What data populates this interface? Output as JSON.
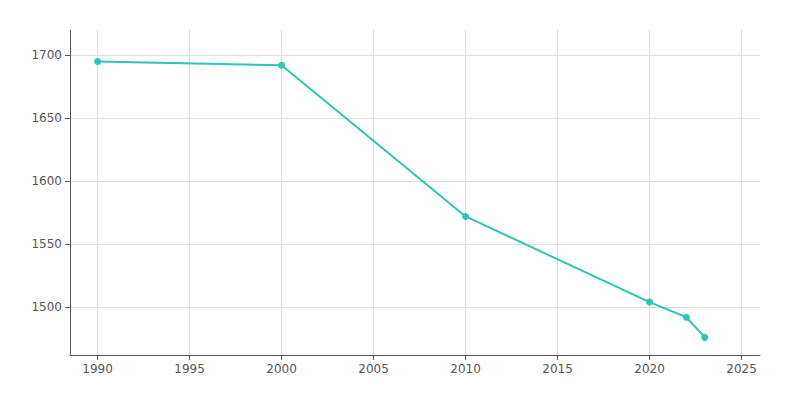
{
  "chart_data": {
    "type": "line",
    "x": [
      1990,
      2000,
      2010,
      2020,
      2022,
      2023
    ],
    "values": [
      1695,
      1692,
      1572,
      1504,
      1492,
      1476
    ],
    "color": "#2ec4b6",
    "marker": "circle",
    "xlim": [
      1988.5,
      2026
    ],
    "ylim": [
      1462,
      1720
    ],
    "xticks": [
      1990,
      1995,
      2000,
      2005,
      2010,
      2015,
      2020,
      2025
    ],
    "yticks": [
      1500,
      1550,
      1600,
      1650,
      1700
    ],
    "grid": true
  }
}
